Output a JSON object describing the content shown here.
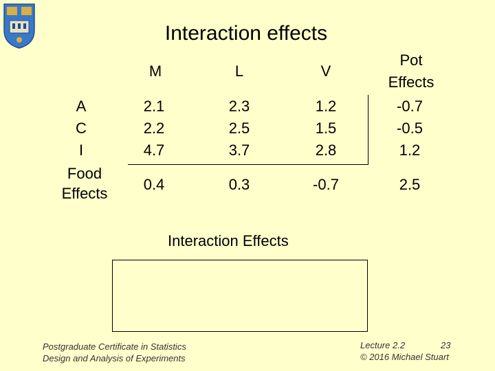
{
  "title": "Interaction effects",
  "table": {
    "headers": [
      "M",
      "L",
      "V",
      "Pot Effects"
    ],
    "row_labels": [
      "A",
      "C",
      "I"
    ],
    "rows": [
      [
        "2.1",
        "2.3",
        "1.2",
        "-0.7"
      ],
      [
        "2.2",
        "2.5",
        "1.5",
        "-0.5"
      ],
      [
        "4.7",
        "3.7",
        "2.8",
        "1.2"
      ]
    ],
    "food_label": "Food Effects",
    "food_effects": [
      "0.4",
      "0.3",
      "-0.7",
      "2.5"
    ]
  },
  "interaction_title": "Interaction Effects",
  "footer": {
    "left_line1": "Postgraduate Certificate in Statistics",
    "left_line2": "Design and Analysis of Experiments",
    "lecture": "Lecture 2.2",
    "page": "23",
    "copyright": "© 2016 Michael Stuart"
  },
  "colors": {
    "background": "#ffffcc",
    "crest_blue": "#3a78c8",
    "crest_gold": "#d8b040"
  }
}
